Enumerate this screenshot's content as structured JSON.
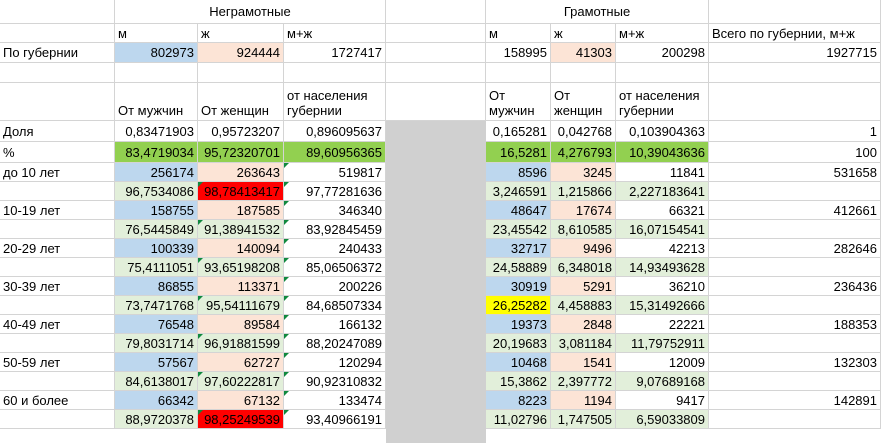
{
  "columns": {
    "x": [
      0,
      115,
      198,
      284,
      386,
      486,
      551,
      616,
      709,
      881
    ]
  },
  "headers": {
    "illiterate": "Неграмотные",
    "literate": "Грамотные"
  },
  "row_m_zh": {
    "m": "м",
    "zh": "ж",
    "mzh": "м+ж",
    "total_label": "Всего по губернии, м+ж"
  },
  "row_province": {
    "label": "По губернии",
    "ill_m": "802973",
    "ill_zh": "924444",
    "ill_mzh": "1727417",
    "lit_m": "158995",
    "lit_zh": "41303",
    "lit_mzh": "200298",
    "total": "1927715"
  },
  "row_from": {
    "ill_m": "От мужчин",
    "ill_zh": "От женщин",
    "ill_mzh": "от населения губернии",
    "lit_m": "От мужчин",
    "lit_zh": "От женщин",
    "lit_mzh": "от населения губернии"
  },
  "row_share": {
    "label": "Доля",
    "ill_m": "0,83471903",
    "ill_zh": "0,95723207",
    "ill_mzh": "0,896095637",
    "lit_m": "0,165281",
    "lit_zh": "0,042768",
    "lit_mzh": "0,103904363",
    "total": "1"
  },
  "row_pct": {
    "label": "%",
    "ill_m": "83,4719034",
    "ill_zh": "95,72320701",
    "ill_mzh": "89,60956365",
    "lit_m": "16,5281",
    "lit_zh": "4,276793",
    "lit_mzh": "10,39043636",
    "total": "100"
  },
  "age_rows": [
    {
      "label": "до 10 лет",
      "ill_m": "256174",
      "ill_zh": "263643",
      "ill_mzh": "519817",
      "lit_m": "8596",
      "lit_zh": "3245",
      "lit_mzh": "11841",
      "total": "531658",
      "p_ill_m": "96,7534086",
      "p_ill_zh": "98,78413417",
      "p_ill_mzh": "97,77281636",
      "p_lit_m": "3,246591",
      "p_lit_zh": "1,215866",
      "p_lit_mzh": "2,227183641"
    },
    {
      "label": "10-19 лет",
      "ill_m": "158755",
      "ill_zh": "187585",
      "ill_mzh": "346340",
      "lit_m": "48647",
      "lit_zh": "17674",
      "lit_mzh": "66321",
      "total": "412661",
      "p_ill_m": "76,5445849",
      "p_ill_zh": "91,38941532",
      "p_ill_mzh": "83,92845459",
      "p_lit_m": "23,45542",
      "p_lit_zh": "8,610585",
      "p_lit_mzh": "16,07154541"
    },
    {
      "label": "20-29 лет",
      "ill_m": "100339",
      "ill_zh": "140094",
      "ill_mzh": "240433",
      "lit_m": "32717",
      "lit_zh": "9496",
      "lit_mzh": "42213",
      "total": "282646",
      "p_ill_m": "75,4111051",
      "p_ill_zh": "93,65198208",
      "p_ill_mzh": "85,06506372",
      "p_lit_m": "24,58889",
      "p_lit_zh": "6,348018",
      "p_lit_mzh": "14,93493628"
    },
    {
      "label": "30-39 лет",
      "ill_m": "86855",
      "ill_zh": "113371",
      "ill_mzh": "200226",
      "lit_m": "30919",
      "lit_zh": "5291",
      "lit_mzh": "36210",
      "total": "236436",
      "p_ill_m": "73,7471768",
      "p_ill_zh": "95,54111679",
      "p_ill_mzh": "84,68507334",
      "p_lit_m": "26,25282",
      "p_lit_zh": "4,458883",
      "p_lit_mzh": "15,31492666"
    },
    {
      "label": "40-49 лет",
      "ill_m": "76548",
      "ill_zh": "89584",
      "ill_mzh": "166132",
      "lit_m": "19373",
      "lit_zh": "2848",
      "lit_mzh": "22221",
      "total": "188353",
      "p_ill_m": "79,8031714",
      "p_ill_zh": "96,91881599",
      "p_ill_mzh": "88,20247089",
      "p_lit_m": "20,19683",
      "p_lit_zh": "3,081184",
      "p_lit_mzh": "11,79752911"
    },
    {
      "label": "50-59 лет",
      "ill_m": "57567",
      "ill_zh": "62727",
      "ill_mzh": "120294",
      "lit_m": "10468",
      "lit_zh": "1541",
      "lit_mzh": "12009",
      "total": "132303",
      "p_ill_m": "84,6138017",
      "p_ill_zh": "97,60222817",
      "p_ill_mzh": "90,92310832",
      "p_lit_m": "15,3862",
      "p_lit_zh": "2,397772",
      "p_lit_mzh": "9,07689168"
    },
    {
      "label": "60 и более",
      "ill_m": "66342",
      "ill_zh": "67132",
      "ill_mzh": "133474",
      "lit_m": "8223",
      "lit_zh": "1194",
      "lit_mzh": "9417",
      "total": "142891",
      "p_ill_m": "88,9720378",
      "p_ill_zh": "98,25249539",
      "p_ill_mzh": "93,40966191",
      "p_lit_m": "11,02796",
      "p_lit_zh": "1,747505",
      "p_lit_mzh": "6,59033809"
    }
  ],
  "colors": {
    "blue": "#bdd7ee",
    "pink": "#fce4d6",
    "green": "#92d050",
    "light_green": "#e2efda",
    "red": "#ff0000",
    "yellow": "#ffff00",
    "gray": "#d0d0d0"
  }
}
